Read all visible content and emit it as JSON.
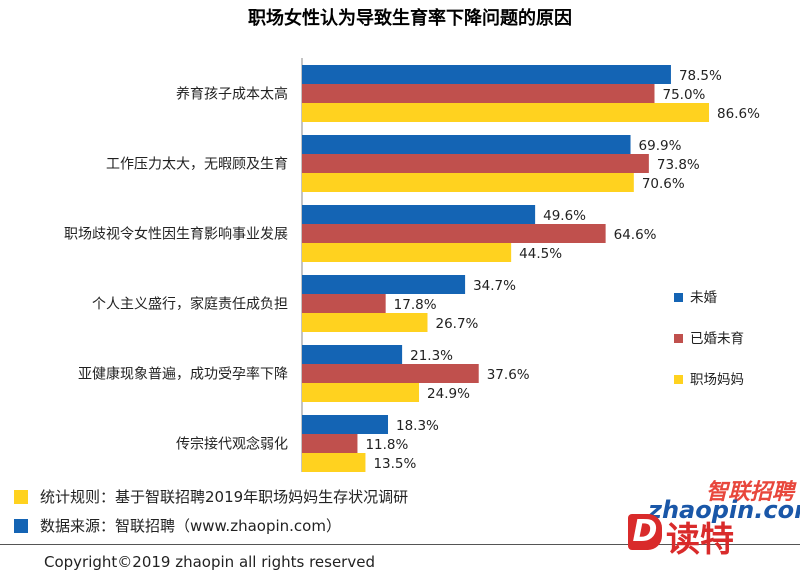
{
  "chart_data": {
    "type": "bar",
    "orientation": "horizontal",
    "title": "职场女性认为导致生育率下降问题的原因",
    "categories": [
      "养育孩子成本太高",
      "工作压力太大，无暇顾及生育",
      "职场歧视令女性因生育影响事业发展",
      "个人主义盛行，家庭责任成负担",
      "亚健康现象普遍，成功受孕率下降",
      "传宗接代观念弱化"
    ],
    "series": [
      {
        "name": "未婚",
        "color": "#1464b4",
        "values": [
          78.5,
          69.9,
          49.6,
          34.7,
          21.3,
          18.3
        ],
        "labels": [
          "78.5%",
          "69.9%",
          "49.6%",
          "34.7%",
          "21.3%",
          "18.3%"
        ]
      },
      {
        "name": "已婚未育",
        "color": "#c0504d",
        "values": [
          75.0,
          73.8,
          64.6,
          17.8,
          37.6,
          11.8
        ],
        "labels": [
          "75.0%",
          "73.8%",
          "64.6%",
          "17.8%",
          "37.6%",
          "11.8%"
        ]
      },
      {
        "name": "职场妈妈",
        "color": "#ffd21f",
        "values": [
          86.6,
          70.6,
          44.5,
          26.7,
          24.9,
          13.5
        ],
        "labels": [
          "86.6%",
          "70.6%",
          "44.5%",
          "26.7%",
          "24.9%",
          "13.5%"
        ]
      }
    ],
    "xlim": [
      0,
      100
    ],
    "grid": false,
    "legend": "right"
  },
  "notes": {
    "rule": "统计规则：基于智联招聘2019年职场妈妈生存状况调研",
    "rule_color": "#ffd21f",
    "source": "数据来源：智联招聘（www.zhaopin.com）",
    "source_color": "#1464b4"
  },
  "copyright": "Copyright©2019 zhaopin all rights reserved",
  "watermark": {
    "brand_cn": "智联招聘",
    "brand_en": "zhaopin.com",
    "badge_letter": "D",
    "badge_text": "读特"
  }
}
